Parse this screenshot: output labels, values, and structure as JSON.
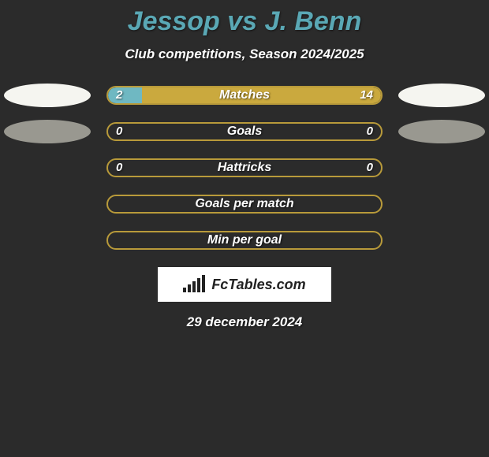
{
  "title": "Jessop vs J. Benn",
  "subtitle": "Club competitions, Season 2024/2025",
  "date": "29 december 2024",
  "logo_text": "FcTables.com",
  "colors": {
    "background": "#2b2b2b",
    "accent_teal": "#5aa8b5",
    "bar_border": "#b89a3a",
    "fill_left": "#6fb8c2",
    "fill_right": "#caa93e",
    "ellipse_white": "#f5f5f0",
    "ellipse_gray": "#999890",
    "text": "#ffffff"
  },
  "stats": [
    {
      "label": "Matches",
      "left_val": "2",
      "right_val": "14",
      "left_pct": 12.5,
      "right_pct": 87.5,
      "show_left_ellipse": true,
      "left_ellipse_style": "white",
      "show_right_ellipse": true,
      "right_ellipse_style": "white"
    },
    {
      "label": "Goals",
      "left_val": "0",
      "right_val": "0",
      "left_pct": 0,
      "right_pct": 0,
      "show_left_ellipse": true,
      "left_ellipse_style": "gray",
      "show_right_ellipse": true,
      "right_ellipse_style": "gray"
    },
    {
      "label": "Hattricks",
      "left_val": "0",
      "right_val": "0",
      "left_pct": 0,
      "right_pct": 0,
      "show_left_ellipse": false,
      "show_right_ellipse": false
    },
    {
      "label": "Goals per match",
      "left_val": "",
      "right_val": "",
      "left_pct": 0,
      "right_pct": 0,
      "show_left_ellipse": false,
      "show_right_ellipse": false
    },
    {
      "label": "Min per goal",
      "left_val": "",
      "right_val": "",
      "left_pct": 0,
      "right_pct": 0,
      "show_left_ellipse": false,
      "show_right_ellipse": false
    }
  ]
}
